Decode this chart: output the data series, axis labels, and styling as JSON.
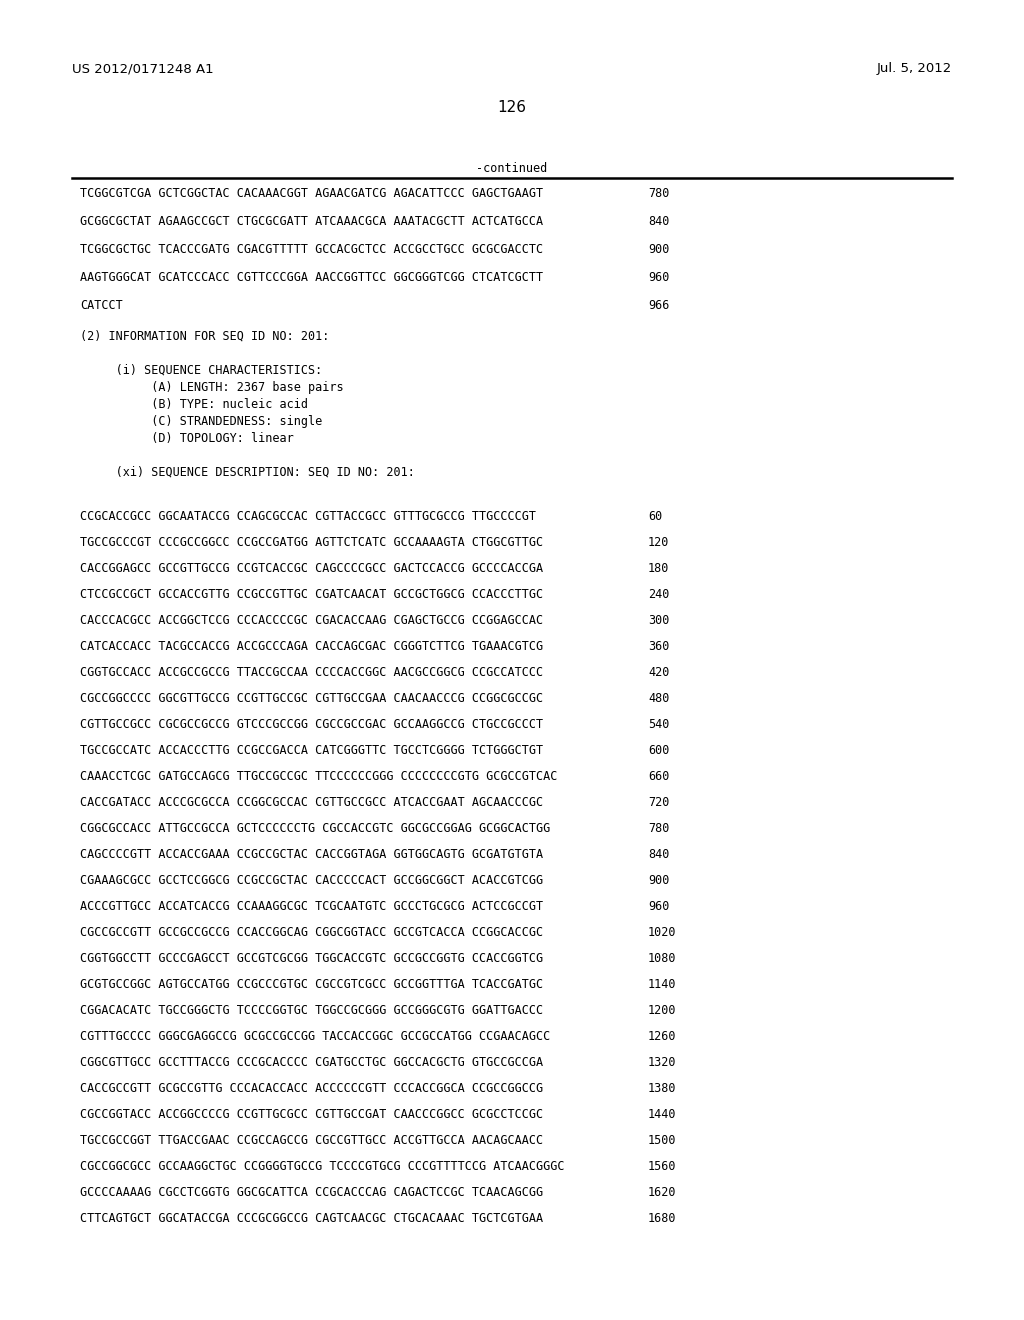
{
  "header_left": "US 2012/0171248 A1",
  "header_right": "Jul. 5, 2012",
  "page_number": "126",
  "continued_label": "-continued",
  "background_color": "#ffffff",
  "text_color": "#000000",
  "line_color": "#000000",
  "font_size_header": 9.5,
  "font_size_body": 8.5,
  "font_size_page": 11.0,
  "sequence_lines_top": [
    [
      "TCGGCGTCGA GCTCGGCTAC CACAAACGGT AGAACGATCG AGACATTCCC GAGCTGAAGT",
      "780"
    ],
    [
      "GCGGCGCTAT AGAAGCCGCT CTGCGCGATT ATCAAACGCA AAATACGCTT ACTCATGCCA",
      "840"
    ],
    [
      "TCGGCGCTGC TCACCCGATG CGACGTTTTT GCCACGCTCC ACCGCCTGCC GCGCGACCTC",
      "900"
    ],
    [
      "AAGTGGGCAT GCATCCCACC CGTTCCCGGA AACCGGTTCC GGCGGGTCGG CTCATCGCTT",
      "960"
    ],
    [
      "CATCCT",
      "966"
    ]
  ],
  "info_block": [
    "(2) INFORMATION FOR SEQ ID NO: 201:",
    "",
    "     (i) SEQUENCE CHARACTERISTICS:",
    "          (A) LENGTH: 2367 base pairs",
    "          (B) TYPE: nucleic acid",
    "          (C) STRANDEDNESS: single",
    "          (D) TOPOLOGY: linear",
    "",
    "     (xi) SEQUENCE DESCRIPTION: SEQ ID NO: 201:"
  ],
  "sequence_lines_bottom": [
    [
      "CCGCACCGCC GGCAATACCG CCAGCGCCAC CGTTACCGCC GTTTGCGCCG TTGCCCCGT",
      "60"
    ],
    [
      "TGCCGCCCGT CCCGCCGGCC CCGCCGATGG AGTTCTCATC GCCAAAAGTA CTGGCGTTGC",
      "120"
    ],
    [
      "CACCGGAGCC GCCGTTGCCG CCGTCACCGC CAGCCCCGCC GACTCCACCG GCCCCACCGA",
      "180"
    ],
    [
      "CTCCGCCGCT GCCACCGTTG CCGCCGTTGC CGATCAACAT GCCGCTGGCG CCACCCTTGC",
      "240"
    ],
    [
      "CACCCACGCC ACCGGCTCCG CCCACCCCGC CGACACCAAG CGAGCTGCCG CCGGAGCCAC",
      "300"
    ],
    [
      "CATCACCACC TACGCCACCG ACCGCCCAGA CACCAGCGAC CGGGTCTTCG TGAAACGTCG",
      "360"
    ],
    [
      "CGGTGCCACC ACCGCCGCCG TTACCGCCAA CCCCACCGGC AACGCCGGCG CCGCCATCCC",
      "420"
    ],
    [
      "CGCCGGCCCC GGCGTTGCCG CCGTTGCCGC CGTTGCCGAA CAACAACCCG CCGGCGCCGC",
      "480"
    ],
    [
      "CGTTGCCGCC CGCGCCGCCG GTCCCGCCGG CGCCGCCGAC GCCAAGGCCG CTGCCGCCCT",
      "540"
    ],
    [
      "TGCCGCCATC ACCACCCTTG CCGCCGACCA CATCGGGTTC TGCCTCGGGG TCTGGGCTGT",
      "600"
    ],
    [
      "CAAACCTCGC GATGCCAGCG TTGCCGCCGC TTCCCCCCGGG CCCCCCCCGTG GCGCCGTCAC",
      "660"
    ],
    [
      "CACCGATACC ACCCGCGCCA CCGGCGCCAC CGTTGCCGCC ATCACCGAAT AGCAACCCGC",
      "720"
    ],
    [
      "CGGCGCCACC ATTGCCGCCA GCTCCCCCCTG CGCCACCGTC GGCGCCGGAG GCGGCACTGG",
      "780"
    ],
    [
      "CAGCCCCGTT ACCACCGAAA CCGCCGCTAC CACCGGTAGA GGTGGCAGTG GCGATGTGTA",
      "840"
    ],
    [
      "CGAAAGCGCC GCCTCCGGCG CCGCCGCTAC CACCCCCACT GCCGGCGGCT ACACCGTCGG",
      "900"
    ],
    [
      "ACCCGTTGCC ACCATCACCG CCAAAGGCGC TCGCAATGTC GCCCTGCGCG ACTCCGCCGT",
      "960"
    ],
    [
      "CGCCGCCGTT GCCGCCGCCG CCACCGGCAG CGGCGGTACC GCCGTCACCA CCGGCACCGC",
      "1020"
    ],
    [
      "CGGTGGCCTT GCCCGAGCCT GCCGTCGCGG TGGCACCGTC GCCGCCGGTG CCACCGGTCG",
      "1080"
    ],
    [
      "GCGTGCCGGC AGTGCCATGG CCGCCCGTGC CGCCGTCGCC GCCGGTTTGA TCACCGATGC",
      "1140"
    ],
    [
      "CGGACACATC TGCCGGGCTG TCCCCGGTGC TGGCCGCGGG GCCGGGCGTG GGATTGACCC",
      "1200"
    ],
    [
      "CGTTTGCCCC GGGCGAGGCCG GCGCCGCCGG TACCACCGGC GCCGCCATGG CCGAACAGCC",
      "1260"
    ],
    [
      "CGGCGTTGCC GCCTTTACCG CCCGCACCCC CGATGCCTGC GGCCACGCTG GTGCCGCCGA",
      "1320"
    ],
    [
      "CACCGCCGTT GCGCCGTTG CCCACACCACC ACCCCCCGTT CCCACCGGCA CCGCCGGCCG",
      "1380"
    ],
    [
      "CGCCGGTACC ACCGGCCCCG CCGTTGCGCC CGTTGCCGAT CAACCCGGCC GCGCCTCCGC",
      "1440"
    ],
    [
      "TGCCGCCGGT TTGACCGAAC CCGCCAGCCG CGCCGTTGCC ACCGTTGCCA AACAGCAACC",
      "1500"
    ],
    [
      "CGCCGGCGCC GCCAAGGCTGC CCGGGGTGCCG TCCCCGTGCG CCCGTTTTCCG ATCAACGGGC",
      "1560"
    ],
    [
      "GCCCCAAAAG CGCCTCGGTG GGCGCATTCA CCGCACCCAG CAGACTCCGC TCAACAGCGG",
      "1620"
    ],
    [
      "CTTCAGTGCT GGCATACCGA CCCGCGGCCG CAGTCAACGC CTGCACAAAC TGCTCGTGAA",
      "1680"
    ]
  ]
}
